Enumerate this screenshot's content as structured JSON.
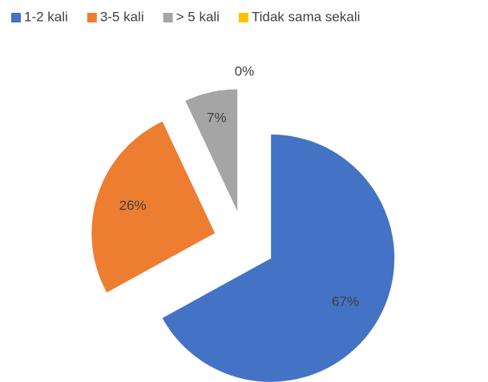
{
  "chart_data": {
    "type": "pie",
    "categories": [
      "1-2 kali",
      "3-5 kali",
      "> 5 kali",
      "Tidak sama sekali"
    ],
    "values": [
      67,
      26,
      7,
      0
    ],
    "value_labels": [
      "67%",
      "26%",
      "7%",
      "0%"
    ],
    "colors": [
      "#4472c4",
      "#ed7d31",
      "#a5a5a5",
      "#ffc000"
    ],
    "exploded": true,
    "legend": "top"
  }
}
